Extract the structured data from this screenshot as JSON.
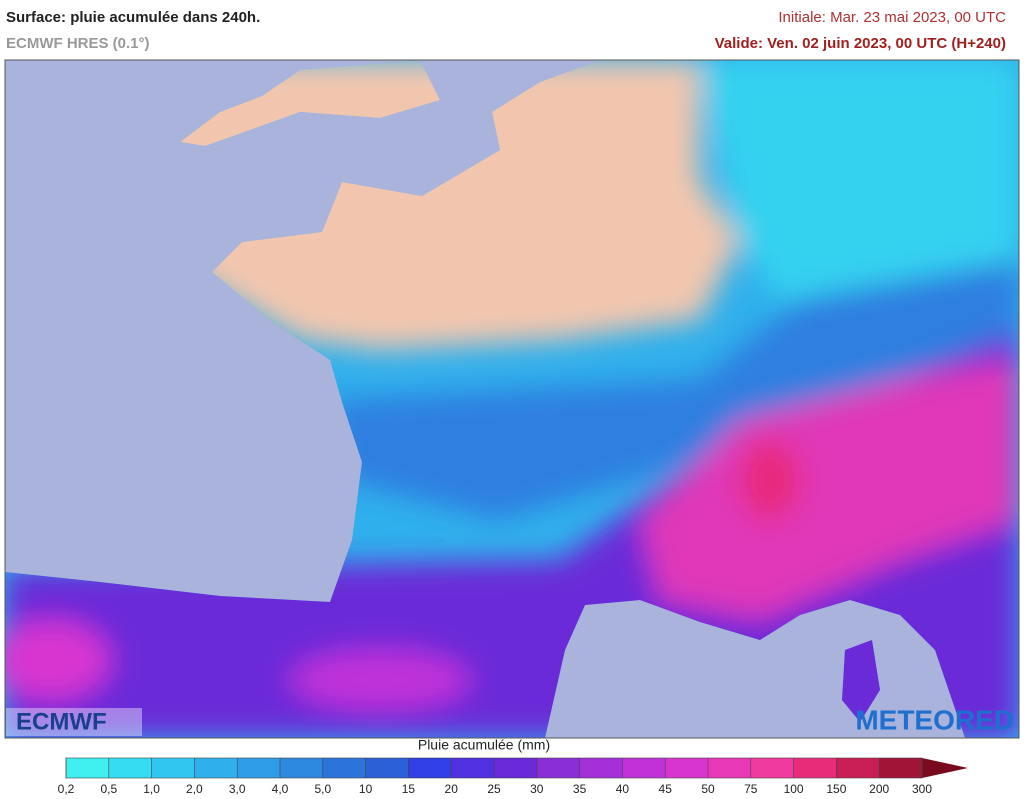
{
  "header": {
    "title": "Surface: pluie acumulée dans 240h.",
    "subtitle": "ECMWF HRES (0.1°)",
    "initial": "Initiale: Mar. 23 mai 2023, 00 UTC",
    "valid": "Valide: Ven. 02 juin 2023, 00 UTC (H+240)"
  },
  "logos": {
    "left": "ECMWF",
    "right": "METEORED"
  },
  "legend": {
    "title": "Pluie acumulée (mm)",
    "ticks": [
      "0,2",
      "0,5",
      "1,0",
      "2,0",
      "3,0",
      "4,0",
      "5,0",
      "10",
      "15",
      "20",
      "25",
      "30",
      "35",
      "40",
      "45",
      "50",
      "75",
      "100",
      "150",
      "200",
      "300"
    ],
    "colors": [
      "#40f0f0",
      "#35dcf2",
      "#30c6f0",
      "#2fb0ec",
      "#2e9ce6",
      "#2d88e0",
      "#2c74db",
      "#2b60d6",
      "#3040e6",
      "#5030e0",
      "#6a2ad8",
      "#8a2ed8",
      "#a530d8",
      "#c032d8",
      "#d835d0",
      "#e838b8",
      "#f03aa0",
      "#e82c7a",
      "#c81e55",
      "#a01438",
      "#7a0a1e"
    ]
  }
}
